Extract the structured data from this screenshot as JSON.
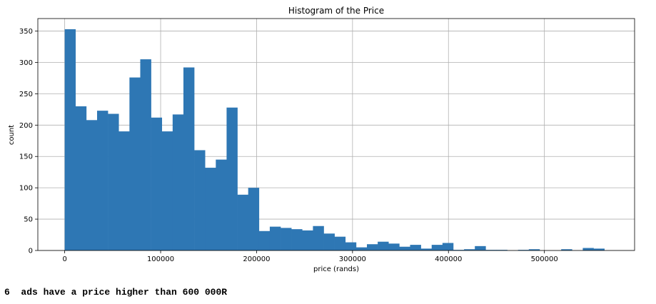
{
  "chart_data": {
    "type": "bar",
    "title": "Histogram of the Price",
    "xlabel": "price (rands)",
    "ylabel": "count",
    "xlim": [
      -28000,
      594000
    ],
    "ylim": [
      0,
      370
    ],
    "xticks": [
      0,
      100000,
      200000,
      300000,
      400000,
      500000
    ],
    "xtick_labels": [
      "0",
      "100000",
      "200000",
      "300000",
      "400000",
      "500000"
    ],
    "yticks": [
      0,
      50,
      100,
      150,
      200,
      250,
      300,
      350
    ],
    "yticks_labels": [
      "0",
      "50",
      "100",
      "150",
      "200",
      "250",
      "300",
      "350"
    ],
    "grid": true,
    "bar_color": "#2e77b4",
    "bin_width": 11250,
    "bin_start": 0,
    "values": [
      353,
      230,
      208,
      223,
      218,
      190,
      276,
      305,
      212,
      190,
      217,
      292,
      160,
      132,
      145,
      228,
      89,
      100,
      31,
      38,
      36,
      34,
      32,
      39,
      27,
      22,
      13,
      5,
      10,
      14,
      11,
      6,
      9,
      3,
      9,
      12,
      1,
      2,
      7,
      1,
      1,
      0,
      1,
      2,
      0,
      0,
      2,
      0,
      4,
      3
    ]
  },
  "note": "6  ads have a price higher than 600 000R"
}
